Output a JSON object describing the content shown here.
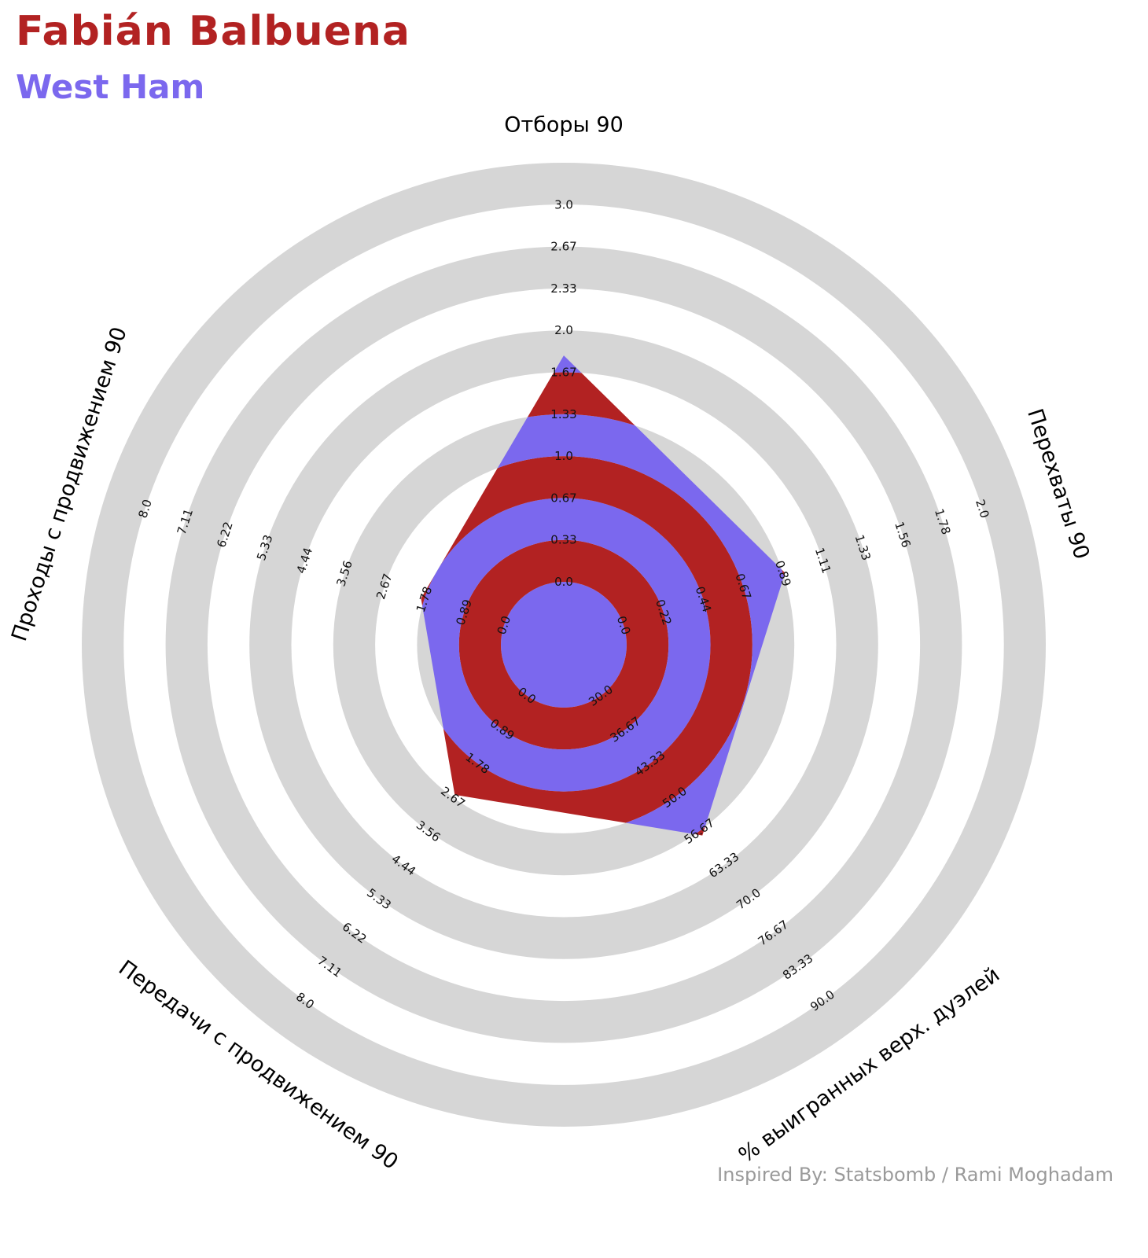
{
  "title": "Fabián Balbuena",
  "subtitle": "West Ham",
  "credit": "Inspired By: Statsbomb / Rami Moghadam",
  "colors": {
    "title": "#b22222",
    "subtitle": "#7b68ee",
    "ring_gray": "#d6d6d6",
    "ring_dark": "#b22222",
    "ring_light": "#7b68ee",
    "credit": "#9a9a9a"
  },
  "chart_data": {
    "type": "radar",
    "axes": [
      {
        "label": "Отборы 90",
        "value": 1.8,
        "range": [
          0,
          3.0
        ],
        "ticks": [
          "0.0",
          "0.33",
          "0.67",
          "1.0",
          "1.33",
          "1.67",
          "2.0",
          "2.33",
          "2.67",
          "3.0"
        ]
      },
      {
        "label": "Перехваты 90",
        "value": 0.9,
        "range": [
          0,
          2.0
        ],
        "ticks": [
          "0.0",
          "0.22",
          "0.44",
          "0.67",
          "0.89",
          "1.11",
          "1.33",
          "1.56",
          "1.78",
          "2.0"
        ]
      },
      {
        "label": "% выигранных верх. дуэлей",
        "value": 57.5,
        "range": [
          30.0,
          90.0
        ],
        "ticks": [
          "30.0",
          "36.67",
          "43.33",
          "50.0",
          "56.67",
          "63.33",
          "70.0",
          "76.67",
          "83.33",
          "90.0"
        ]
      },
      {
        "label": "Передачи с продвижением 90",
        "value": 2.6,
        "range": [
          0,
          8.0
        ],
        "ticks": [
          "0.0",
          "0.89",
          "1.78",
          "2.67",
          "3.56",
          "4.44",
          "5.33",
          "6.22",
          "7.11",
          "8.0"
        ]
      },
      {
        "label": "Проходы с продвижением 90",
        "value": 1.85,
        "range": [
          0,
          8.0
        ],
        "ticks": [
          "0.0",
          "0.89",
          "1.78",
          "2.67",
          "3.56",
          "4.44",
          "5.33",
          "6.22",
          "7.11",
          "8.0"
        ]
      }
    ]
  }
}
